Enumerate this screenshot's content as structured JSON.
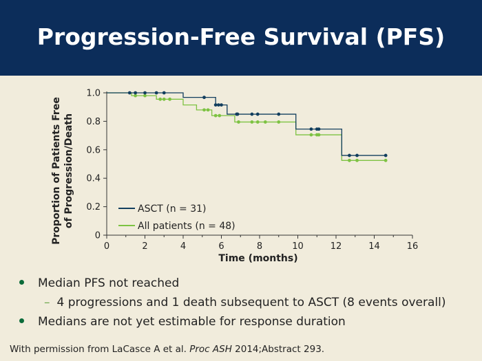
{
  "slide": {
    "title": "Progression-Free Survival (PFS)"
  },
  "bullets": {
    "b1": "Median PFS not reached",
    "b1_sub": "4 progressions and 1 death subsequent to ASCT (8 events overall)",
    "b2": "Medians are not yet estimable for response duration"
  },
  "footnote": {
    "prefix": "With permission from LaCasce A et al. ",
    "journal": "Proc ASH",
    "suffix": " 2014;Abstract 293."
  },
  "colors": {
    "asct": "#123e5e",
    "all": "#7dc242",
    "header_bg": "#0c2d5a",
    "background": "#f1ecdc"
  },
  "chart_data": {
    "type": "line",
    "step": true,
    "ylabel_line1": "Proportion of Patients Free",
    "ylabel_line2": "of Progression/Death",
    "xlabel": "Time (months)",
    "xlim": [
      0,
      16
    ],
    "ylim": [
      0,
      1.0
    ],
    "xticks": [
      0,
      2,
      4,
      6,
      8,
      10,
      12,
      14,
      16
    ],
    "yticks": [
      0,
      0.2,
      0.4,
      0.6,
      0.8,
      1.0
    ],
    "ytick_labels": [
      "0",
      "0.2",
      "0.4",
      "0.6",
      "0.8",
      "1.0"
    ],
    "legend_placement": "bottom-left",
    "series": [
      {
        "name": "ASCT (n = 31)",
        "color": "#123e5e",
        "steps": [
          [
            0,
            1.0
          ],
          [
            4.0,
            0.968
          ],
          [
            5.7,
            0.915
          ],
          [
            6.3,
            0.85
          ],
          [
            9.9,
            0.745
          ],
          [
            12.3,
            0.56
          ],
          [
            14.6,
            0.56
          ]
        ],
        "censored": [
          [
            1.2,
            1.0
          ],
          [
            1.5,
            1.0
          ],
          [
            2.0,
            1.0
          ],
          [
            2.6,
            1.0
          ],
          [
            3.0,
            1.0
          ],
          [
            5.1,
            0.968
          ],
          [
            5.7,
            0.915
          ],
          [
            5.85,
            0.915
          ],
          [
            6.0,
            0.915
          ],
          [
            6.8,
            0.85
          ],
          [
            6.85,
            0.85
          ],
          [
            7.6,
            0.85
          ],
          [
            7.9,
            0.85
          ],
          [
            9.0,
            0.85
          ],
          [
            10.7,
            0.745
          ],
          [
            11.0,
            0.745
          ],
          [
            11.1,
            0.745
          ],
          [
            12.7,
            0.56
          ],
          [
            13.1,
            0.56
          ],
          [
            14.6,
            0.56
          ]
        ]
      },
      {
        "name": "All patients (n = 48)",
        "color": "#7dc242",
        "steps": [
          [
            0,
            1.0
          ],
          [
            1.3,
            0.98
          ],
          [
            2.6,
            0.955
          ],
          [
            4.0,
            0.915
          ],
          [
            4.7,
            0.88
          ],
          [
            5.5,
            0.84
          ],
          [
            6.7,
            0.795
          ],
          [
            9.9,
            0.705
          ],
          [
            12.3,
            0.525
          ],
          [
            14.6,
            0.525
          ]
        ],
        "censored": [
          [
            1.5,
            0.98
          ],
          [
            2.0,
            0.98
          ],
          [
            2.8,
            0.955
          ],
          [
            3.0,
            0.955
          ],
          [
            3.3,
            0.955
          ],
          [
            5.1,
            0.88
          ],
          [
            5.3,
            0.88
          ],
          [
            5.7,
            0.84
          ],
          [
            5.9,
            0.84
          ],
          [
            6.9,
            0.795
          ],
          [
            7.6,
            0.795
          ],
          [
            7.9,
            0.795
          ],
          [
            8.3,
            0.795
          ],
          [
            9.0,
            0.795
          ],
          [
            10.7,
            0.705
          ],
          [
            11.0,
            0.705
          ],
          [
            11.1,
            0.705
          ],
          [
            12.7,
            0.525
          ],
          [
            13.1,
            0.525
          ],
          [
            14.6,
            0.525
          ]
        ]
      }
    ]
  }
}
